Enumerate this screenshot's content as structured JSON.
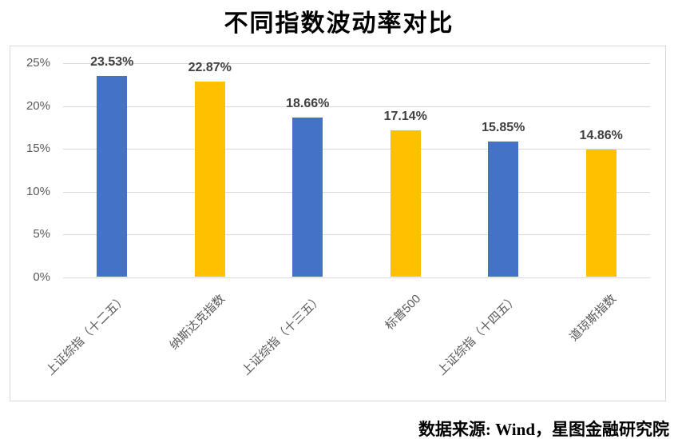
{
  "title": "不同指数波动率对比",
  "source": "数据来源: Wind，星图金融研究院",
  "chart_data": {
    "type": "bar",
    "title": "不同指数波动率对比",
    "categories": [
      "上证综指（十二五）",
      "纳斯达克指数",
      "上证综指（十三五）",
      "标普500",
      "上证综指（十四五）",
      "道琼斯指数"
    ],
    "values": [
      23.53,
      22.87,
      18.66,
      17.14,
      15.85,
      14.86
    ],
    "value_labels": [
      "23.53%",
      "22.87%",
      "18.66%",
      "17.14%",
      "15.85%",
      "14.86%"
    ],
    "bar_colors": [
      "#4472c4",
      "#ffc000",
      "#4472c4",
      "#ffc000",
      "#4472c4",
      "#ffc000"
    ],
    "xlabel": "",
    "ylabel": "",
    "ylim": [
      0,
      25
    ],
    "ytick_values": [
      0,
      5,
      10,
      15,
      20,
      25
    ],
    "ytick_labels": [
      "0%",
      "5%",
      "10%",
      "15%",
      "20%",
      "25%"
    ],
    "grid": true,
    "legend": false,
    "xtick_rotation_deg": 45
  },
  "colors": {
    "bar_blue": "#4472c4",
    "bar_gold": "#ffc000",
    "gridline": "#d9d9d9",
    "axis_text": "#595959",
    "value_label_text": "#404040",
    "title_text": "#000000"
  }
}
